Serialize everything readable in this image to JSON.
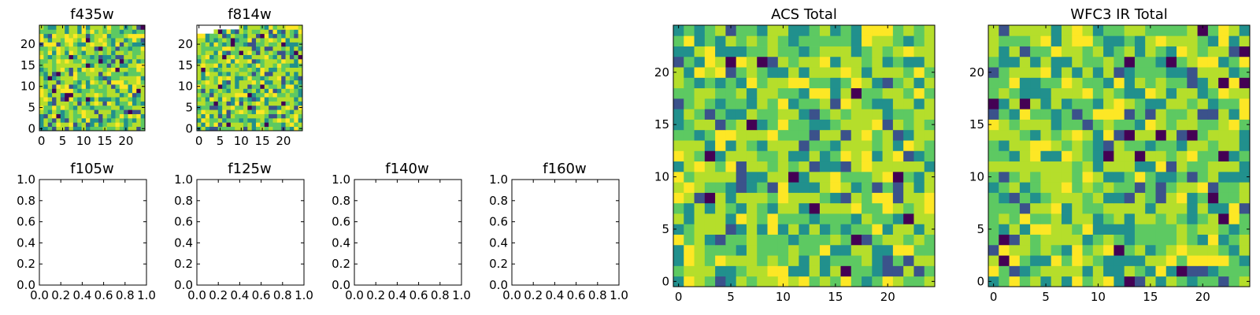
{
  "colormap": [
    "#440154",
    "#3b528b",
    "#21908d",
    "#5dc962",
    "#b5de2b",
    "#fde725"
  ],
  "chart_data": [
    {
      "id": "f435w",
      "type": "heatmap",
      "title": "f435w",
      "grid": [
        25,
        25
      ],
      "xlim": [
        0,
        25
      ],
      "ylim": [
        0,
        25
      ],
      "xticks": [
        0,
        5,
        10,
        15,
        20
      ],
      "yticks": [
        0,
        5,
        10,
        15,
        20
      ],
      "pattern": "noise",
      "seed": 11,
      "missing_pixels": []
    },
    {
      "id": "f814w",
      "type": "heatmap",
      "title": "f814w",
      "grid": [
        25,
        25
      ],
      "xlim": [
        0,
        25
      ],
      "ylim": [
        0,
        25
      ],
      "xticks": [
        0,
        5,
        10,
        15,
        20
      ],
      "yticks": [
        0,
        5,
        10,
        15,
        20
      ],
      "pattern": "noise",
      "seed": 37,
      "missing_pixels": [
        [
          0,
          24
        ],
        [
          1,
          24
        ],
        [
          2,
          24
        ],
        [
          3,
          24
        ],
        [
          4,
          24
        ],
        [
          0,
          23
        ],
        [
          1,
          23
        ],
        [
          2,
          23
        ],
        [
          3,
          23
        ],
        [
          5,
          24
        ],
        [
          6,
          24
        ],
        [
          7,
          24
        ],
        [
          8,
          24
        ],
        [
          9,
          24
        ]
      ]
    },
    {
      "id": "f105w",
      "type": "empty",
      "title": "f105w",
      "xlim": [
        0,
        1
      ],
      "ylim": [
        0,
        1
      ],
      "xticks": [
        "0.0",
        "0.2",
        "0.4",
        "0.6",
        "0.8",
        "1.0"
      ],
      "yticks": [
        "0.0",
        "0.2",
        "0.4",
        "0.6",
        "0.8",
        "1.0"
      ]
    },
    {
      "id": "f125w",
      "type": "empty",
      "title": "f125w",
      "xlim": [
        0,
        1
      ],
      "ylim": [
        0,
        1
      ],
      "xticks": [
        "0.0",
        "0.2",
        "0.4",
        "0.6",
        "0.8",
        "1.0"
      ],
      "yticks": [
        "0.0",
        "0.2",
        "0.4",
        "0.6",
        "0.8",
        "1.0"
      ]
    },
    {
      "id": "f140w",
      "type": "empty",
      "title": "f140w",
      "xlim": [
        0,
        1
      ],
      "ylim": [
        0,
        1
      ],
      "xticks": [
        "0.0",
        "0.2",
        "0.4",
        "0.6",
        "0.8",
        "1.0"
      ],
      "yticks": [
        "0.0",
        "0.2",
        "0.4",
        "0.6",
        "0.8",
        "1.0"
      ]
    },
    {
      "id": "f160w",
      "type": "empty",
      "title": "f160w",
      "xlim": [
        0,
        1
      ],
      "ylim": [
        0,
        1
      ],
      "xticks": [
        "0.0",
        "0.2",
        "0.4",
        "0.6",
        "0.8",
        "1.0"
      ],
      "yticks": [
        "0.0",
        "0.2",
        "0.4",
        "0.6",
        "0.8",
        "1.0"
      ]
    },
    {
      "id": "acs-total",
      "type": "heatmap",
      "title": "ACS Total",
      "grid": [
        25,
        25
      ],
      "xlim": [
        0,
        25
      ],
      "ylim": [
        0,
        25
      ],
      "xticks": [
        0,
        5,
        10,
        15,
        20
      ],
      "yticks": [
        0,
        5,
        10,
        15,
        20
      ],
      "pattern": "noise",
      "seed": 73,
      "missing_pixels": []
    },
    {
      "id": "wfc3-ir-total",
      "type": "heatmap",
      "title": "WFC3 IR Total",
      "grid": [
        25,
        25
      ],
      "xlim": [
        0,
        25
      ],
      "ylim": [
        0,
        25
      ],
      "xticks": [
        0,
        5,
        10,
        15,
        20
      ],
      "yticks": [
        0,
        5,
        10,
        15,
        20
      ],
      "pattern": "noise",
      "seed": 101,
      "missing_pixels": []
    }
  ]
}
